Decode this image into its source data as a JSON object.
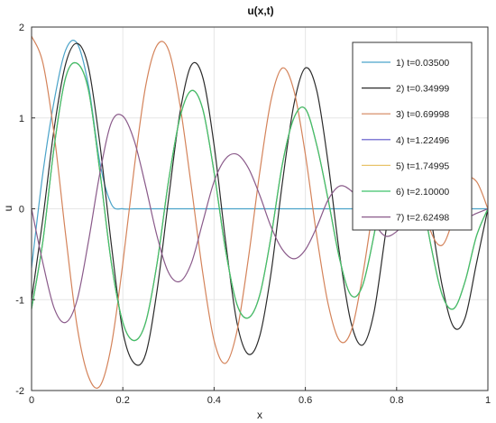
{
  "chart_data": {
    "type": "line",
    "title": "u(x,t)",
    "xlabel": "x",
    "ylabel": "u",
    "xlim": [
      0,
      1
    ],
    "ylim": [
      -2,
      2
    ],
    "xticks": [
      0,
      0.2,
      0.4,
      0.6,
      0.8,
      1
    ],
    "xtick_labels": [
      "0",
      "0.2",
      "0.4",
      "0.6",
      "0.8",
      "1"
    ],
    "yticks": [
      -2,
      -1,
      0,
      1,
      2
    ],
    "ytick_labels": [
      "-2",
      "-1",
      "0",
      "1",
      "2"
    ],
    "grid": true,
    "legend_position": "top-right",
    "x": [
      0,
      0.025,
      0.05,
      0.075,
      0.1,
      0.125,
      0.15,
      0.175,
      0.2,
      0.225,
      0.25,
      0.275,
      0.3,
      0.325,
      0.35,
      0.375,
      0.4,
      0.425,
      0.45,
      0.475,
      0.5,
      0.525,
      0.55,
      0.575,
      0.6,
      0.625,
      0.65,
      0.675,
      0.7,
      0.725,
      0.75,
      0.775,
      0.8,
      0.825,
      0.85,
      0.875,
      0.9,
      0.925,
      0.95,
      0.975,
      1
    ],
    "series": [
      {
        "name": "1) t=0.03500",
        "color": "#4aa3c9",
        "values": [
          -0.65,
          0.4,
          1.2,
          1.75,
          1.82,
          1.35,
          0.5,
          0.05,
          0,
          0,
          0,
          0,
          0,
          0,
          0,
          0,
          0,
          0,
          0,
          0,
          0,
          0,
          0,
          0,
          0,
          0,
          0,
          0,
          0,
          0,
          0,
          0,
          0,
          0,
          0,
          0,
          0,
          0,
          0,
          0,
          0
        ]
      },
      {
        "name": "2) t=0.34999",
        "color": "#2b2b2b",
        "values": [
          -1.0,
          -0.1,
          0.9,
          1.6,
          1.82,
          1.55,
          0.7,
          -0.4,
          -1.35,
          -1.7,
          -1.6,
          -0.9,
          0.1,
          1.05,
          1.58,
          1.45,
          0.7,
          -0.35,
          -1.25,
          -1.6,
          -1.4,
          -0.7,
          0.3,
          1.15,
          1.55,
          1.3,
          0.5,
          -0.5,
          -1.25,
          -1.5,
          -1.15,
          -0.3,
          0.55,
          0.9,
          0.6,
          -0.1,
          -0.85,
          -1.3,
          -1.2,
          -0.6,
          0
        ]
      },
      {
        "name": "3) t=0.69998",
        "color": "#d4835a",
        "values": [
          1.9,
          1.6,
          0.8,
          -0.3,
          -1.3,
          -1.85,
          -1.95,
          -1.5,
          -0.6,
          0.45,
          1.35,
          1.8,
          1.75,
          1.15,
          0.25,
          -0.7,
          -1.45,
          -1.7,
          -1.35,
          -0.55,
          0.4,
          1.2,
          1.55,
          1.3,
          0.6,
          -0.3,
          -1.05,
          -1.45,
          -1.35,
          -0.75,
          0.05,
          0.75,
          1.0,
          0.75,
          0.25,
          -0.25,
          -0.4,
          -0.1,
          0.3,
          0.3,
          0
        ]
      },
      {
        "name": "4) t=1.22496",
        "color": "#5a52c9",
        "values": [
          -1.1,
          -0.35,
          0.7,
          1.45,
          1.6,
          1.3,
          0.4,
          -0.6,
          -1.25,
          -1.45,
          -1.25,
          -0.6,
          0.3,
          1.0,
          1.3,
          1.1,
          0.4,
          -0.45,
          -1.05,
          -1.2,
          -0.95,
          -0.3,
          0.5,
          1.0,
          1.1,
          0.7,
          0.1,
          -0.55,
          -0.95,
          -0.85,
          -0.3,
          0.4,
          0.9,
          0.85,
          0.3,
          -0.4,
          -0.95,
          -1.1,
          -0.8,
          -0.3,
          0
        ]
      },
      {
        "name": "5) t=1.74995",
        "color": "#e8c36a",
        "values": [
          -1.1,
          -0.35,
          0.7,
          1.45,
          1.6,
          1.3,
          0.4,
          -0.6,
          -1.25,
          -1.45,
          -1.25,
          -0.6,
          0.3,
          1.0,
          1.3,
          1.1,
          0.4,
          -0.45,
          -1.05,
          -1.2,
          -0.95,
          -0.3,
          0.5,
          1.0,
          1.1,
          0.7,
          0.1,
          -0.55,
          -0.95,
          -0.85,
          -0.3,
          0.4,
          0.9,
          0.85,
          0.3,
          -0.4,
          -0.95,
          -1.1,
          -0.8,
          -0.3,
          0
        ]
      },
      {
        "name": "6) t=2.10000",
        "color": "#3ec26a",
        "values": [
          -1.1,
          -0.35,
          0.7,
          1.45,
          1.6,
          1.3,
          0.4,
          -0.6,
          -1.25,
          -1.45,
          -1.25,
          -0.6,
          0.3,
          1.0,
          1.3,
          1.1,
          0.4,
          -0.45,
          -1.05,
          -1.2,
          -0.95,
          -0.3,
          0.5,
          1.0,
          1.1,
          0.7,
          0.1,
          -0.55,
          -0.95,
          -0.85,
          -0.3,
          0.4,
          0.9,
          0.85,
          0.3,
          -0.4,
          -0.95,
          -1.1,
          -0.8,
          -0.3,
          0
        ]
      },
      {
        "name": "7) t=2.62498",
        "color": "#8a5a8a",
        "values": [
          0,
          -0.6,
          -1.1,
          -1.25,
          -1.0,
          -0.35,
          0.4,
          0.95,
          1.02,
          0.75,
          0.25,
          -0.3,
          -0.7,
          -0.8,
          -0.6,
          -0.15,
          0.3,
          0.55,
          0.6,
          0.45,
          0.15,
          -0.2,
          -0.45,
          -0.55,
          -0.45,
          -0.2,
          0.1,
          0.25,
          0.2,
          0.05,
          -0.15,
          -0.3,
          -0.25,
          -0.1,
          0.05,
          0.1,
          0.05,
          -0.05,
          -0.1,
          -0.05,
          0
        ]
      }
    ]
  }
}
